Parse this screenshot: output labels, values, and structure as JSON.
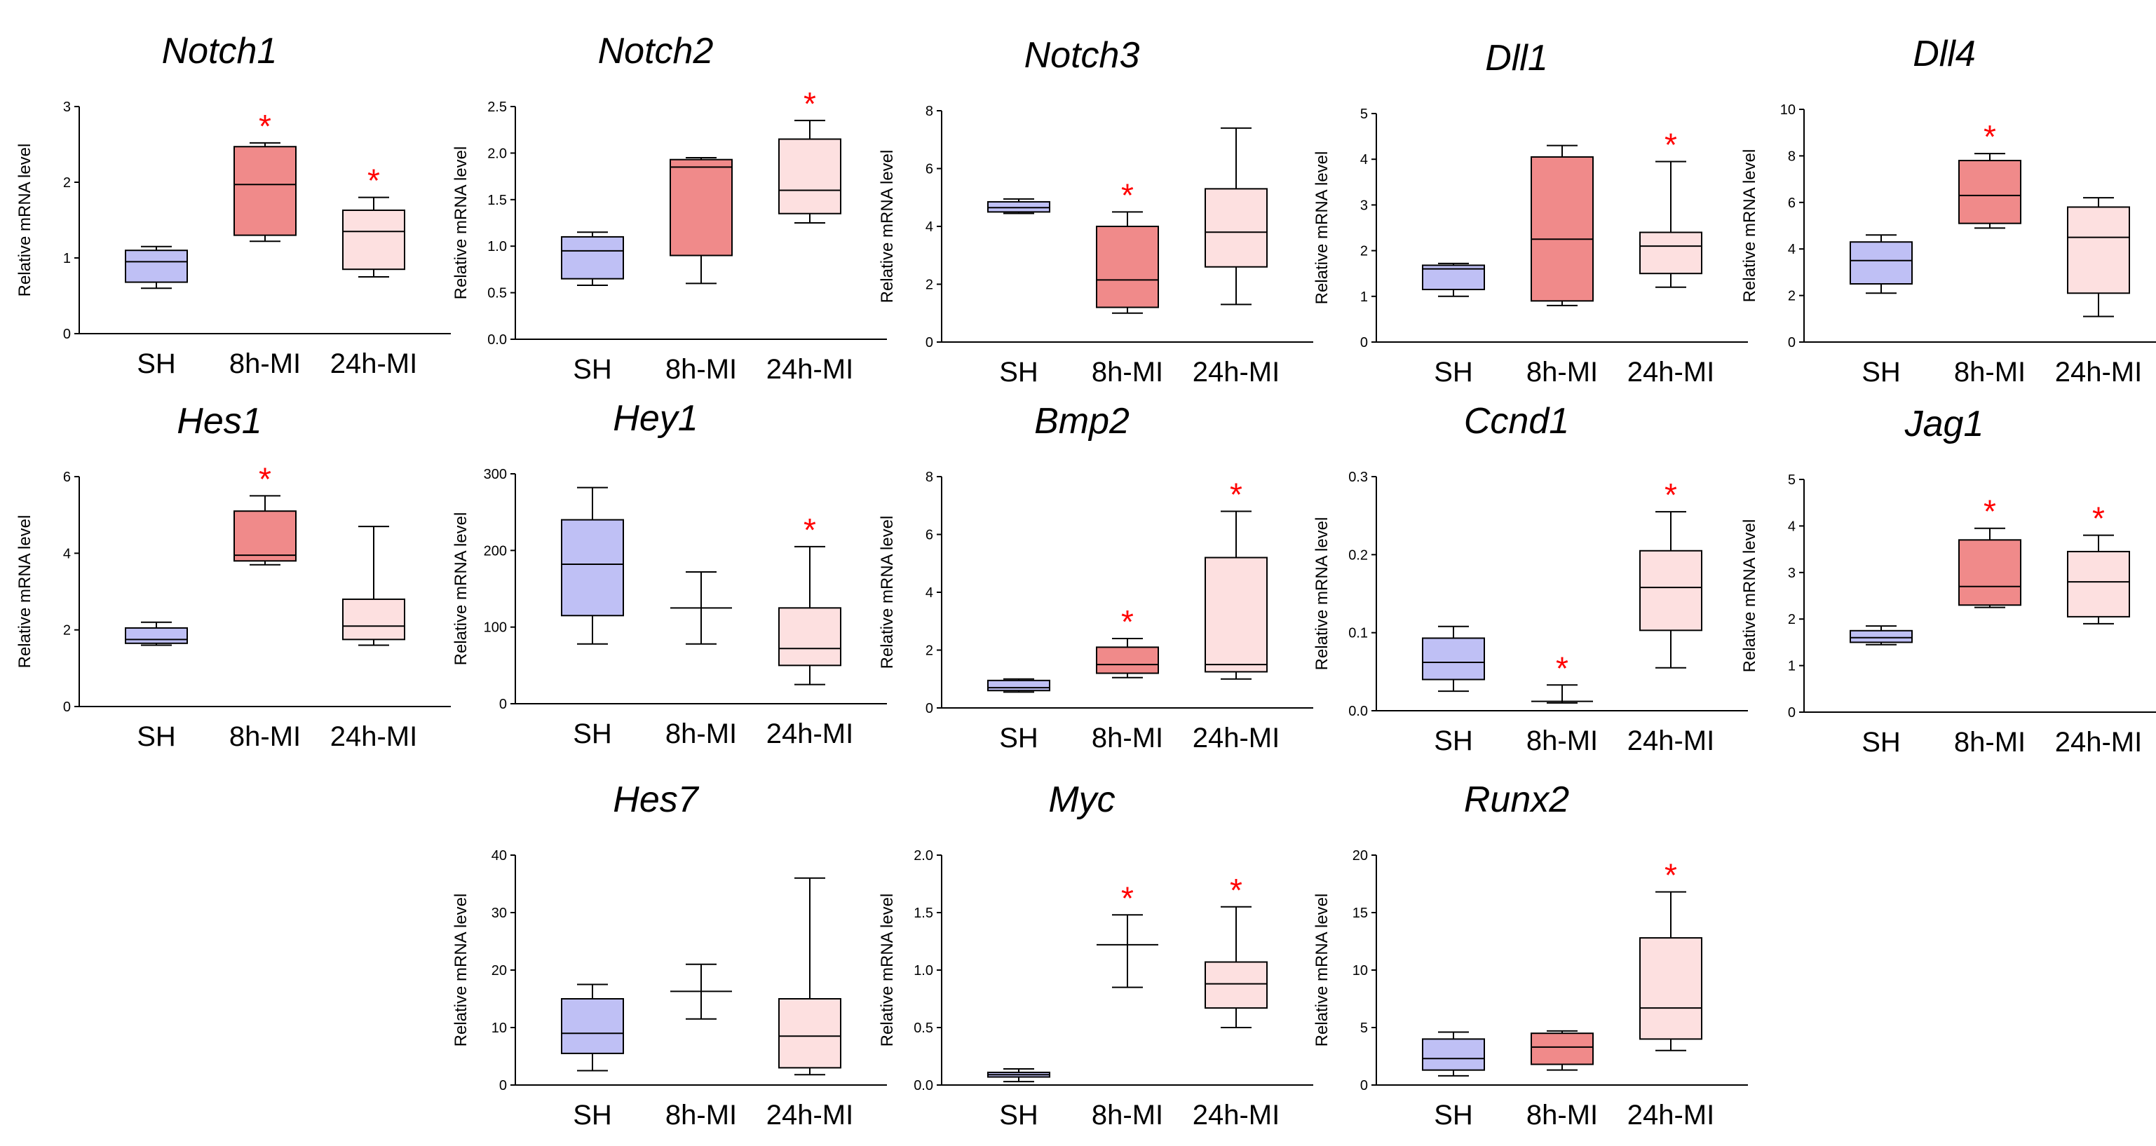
{
  "colors": {
    "SH": "#bfc0f5",
    "8h-MI": "#f08a8a",
    "24h-MI": "#fde0e0",
    "star": "#ff0000"
  },
  "chart_data": [
    {
      "type": "box",
      "title": "Notch1",
      "ylabel": "Relative mRNA level",
      "ylim": [
        0,
        3
      ],
      "yticks": [
        "0",
        "1",
        "2",
        "3"
      ],
      "categories": [
        "SH",
        "8h-MI",
        "24h-MI"
      ],
      "boxes": [
        {
          "min": 0.6,
          "q1": 0.68,
          "median": 0.95,
          "q3": 1.1,
          "max": 1.15
        },
        {
          "min": 1.22,
          "q1": 1.3,
          "median": 1.97,
          "q3": 2.47,
          "max": 2.52
        },
        {
          "min": 0.75,
          "q1": 0.85,
          "median": 1.35,
          "q3": 1.63,
          "max": 1.8
        }
      ],
      "significance": [
        "",
        "*",
        "*"
      ]
    },
    {
      "type": "box",
      "title": "Notch2",
      "ylabel": "Relative mRNA level",
      "ylim": [
        0,
        2.5
      ],
      "yticks": [
        "0.0",
        "0.5",
        "1.0",
        "1.5",
        "2.0",
        "2.5"
      ],
      "categories": [
        "SH",
        "8h-MI",
        "24h-MI"
      ],
      "boxes": [
        {
          "min": 0.58,
          "q1": 0.65,
          "median": 0.95,
          "q3": 1.1,
          "max": 1.15
        },
        {
          "min": 0.6,
          "q1": 0.9,
          "median": 1.85,
          "q3": 1.93,
          "max": 1.95
        },
        {
          "min": 1.25,
          "q1": 1.35,
          "median": 1.6,
          "q3": 2.15,
          "max": 2.35
        }
      ],
      "significance": [
        "",
        "",
        "*"
      ]
    },
    {
      "type": "box",
      "title": "Notch3",
      "ylabel": "Relative mRNA level",
      "ylim": [
        0,
        8
      ],
      "yticks": [
        "0",
        "2",
        "4",
        "6",
        "8"
      ],
      "categories": [
        "SH",
        "8h-MI",
        "24h-MI"
      ],
      "boxes": [
        {
          "min": 4.45,
          "q1": 4.5,
          "median": 4.65,
          "q3": 4.85,
          "max": 4.95
        },
        {
          "min": 1.0,
          "q1": 1.2,
          "median": 2.15,
          "q3": 4.0,
          "max": 4.5
        },
        {
          "min": 1.3,
          "q1": 2.6,
          "median": 3.8,
          "q3": 5.3,
          "max": 7.4
        }
      ],
      "significance": [
        "",
        "*",
        ""
      ]
    },
    {
      "type": "box",
      "title": "Dll1",
      "ylabel": "Relative mRNA level",
      "ylim": [
        0,
        5
      ],
      "yticks": [
        "0",
        "1",
        "2",
        "3",
        "4",
        "5"
      ],
      "categories": [
        "SH",
        "8h-MI",
        "24h-MI"
      ],
      "boxes": [
        {
          "min": 1.0,
          "q1": 1.15,
          "median": 1.6,
          "q3": 1.68,
          "max": 1.72
        },
        {
          "min": 0.8,
          "q1": 0.9,
          "median": 2.25,
          "q3": 4.05,
          "max": 4.3
        },
        {
          "min": 1.2,
          "q1": 1.5,
          "median": 2.1,
          "q3": 2.4,
          "max": 3.95
        }
      ],
      "significance": [
        "",
        "",
        "*"
      ]
    },
    {
      "type": "box",
      "title": "Dll4",
      "ylabel": "Relative mRNA level",
      "ylim": [
        0,
        10
      ],
      "yticks": [
        "0",
        "2",
        "4",
        "6",
        "8",
        "10"
      ],
      "categories": [
        "SH",
        "8h-MI",
        "24h-MI"
      ],
      "boxes": [
        {
          "min": 2.1,
          "q1": 2.5,
          "median": 3.5,
          "q3": 4.3,
          "max": 4.6
        },
        {
          "min": 4.9,
          "q1": 5.1,
          "median": 6.3,
          "q3": 7.8,
          "max": 8.1
        },
        {
          "min": 1.1,
          "q1": 2.1,
          "median": 4.5,
          "q3": 5.8,
          "max": 6.2
        }
      ],
      "significance": [
        "",
        "*",
        ""
      ]
    },
    {
      "type": "box",
      "title": "Hes1",
      "ylabel": "Relative mRNA level",
      "ylim": [
        0,
        6
      ],
      "yticks": [
        "0",
        "2",
        "4",
        "6"
      ],
      "categories": [
        "SH",
        "8h-MI",
        "24h-MI"
      ],
      "boxes": [
        {
          "min": 1.6,
          "q1": 1.65,
          "median": 1.75,
          "q3": 2.05,
          "max": 2.2
        },
        {
          "min": 3.7,
          "q1": 3.8,
          "median": 3.95,
          "q3": 5.1,
          "max": 5.5
        },
        {
          "min": 1.6,
          "q1": 1.75,
          "median": 2.1,
          "q3": 2.8,
          "max": 4.7
        }
      ],
      "significance": [
        "",
        "*",
        ""
      ]
    },
    {
      "type": "box",
      "title": "Hey1",
      "ylabel": "Relative mRNA level",
      "ylim": [
        0,
        300
      ],
      "yticks": [
        "0",
        "100",
        "200",
        "300"
      ],
      "categories": [
        "SH",
        "8h-MI",
        "24h-MI"
      ],
      "boxes": [
        {
          "min": 78,
          "q1": 115,
          "median": 182,
          "q3": 240,
          "max": 282
        },
        {
          "min": 78,
          "median": 125,
          "max": 172
        },
        {
          "min": 25,
          "q1": 50,
          "median": 72,
          "q3": 125,
          "max": 205
        }
      ],
      "significance": [
        "",
        "",
        "*"
      ]
    },
    {
      "type": "box",
      "title": "Bmp2",
      "ylabel": "Relative mRNA level",
      "ylim": [
        0,
        8
      ],
      "yticks": [
        "0",
        "2",
        "4",
        "6",
        "8"
      ],
      "categories": [
        "SH",
        "8h-MI",
        "24h-MI"
      ],
      "boxes": [
        {
          "min": 0.55,
          "q1": 0.6,
          "median": 0.7,
          "q3": 0.95,
          "max": 1.0
        },
        {
          "min": 1.05,
          "q1": 1.2,
          "median": 1.5,
          "q3": 2.1,
          "max": 2.4
        },
        {
          "min": 1.0,
          "q1": 1.25,
          "median": 1.5,
          "q3": 5.2,
          "max": 6.8
        }
      ],
      "significance": [
        "",
        "*",
        "*"
      ]
    },
    {
      "type": "box",
      "title": "Ccnd1",
      "ylabel": "Relative mRNA level",
      "ylim": [
        0,
        0.3
      ],
      "yticks": [
        "0.0",
        "0.1",
        "0.2",
        "0.3"
      ],
      "categories": [
        "SH",
        "8h-MI",
        "24h-MI"
      ],
      "boxes": [
        {
          "min": 0.025,
          "q1": 0.04,
          "median": 0.062,
          "q3": 0.093,
          "max": 0.108
        },
        {
          "min": 0.01,
          "median": 0.012,
          "max": 0.033
        },
        {
          "min": 0.055,
          "q1": 0.103,
          "median": 0.158,
          "q3": 0.205,
          "max": 0.255
        }
      ],
      "significance": [
        "",
        "*",
        "*"
      ]
    },
    {
      "type": "box",
      "title": "Jag1",
      "ylabel": "Relative mRNA level",
      "ylim": [
        0,
        5
      ],
      "yticks": [
        "0",
        "1",
        "2",
        "3",
        "4",
        "5"
      ],
      "categories": [
        "SH",
        "8h-MI",
        "24h-MI"
      ],
      "boxes": [
        {
          "min": 1.45,
          "q1": 1.5,
          "median": 1.6,
          "q3": 1.75,
          "max": 1.85
        },
        {
          "min": 2.25,
          "q1": 2.3,
          "median": 2.7,
          "q3": 3.7,
          "max": 3.95
        },
        {
          "min": 1.9,
          "q1": 2.05,
          "median": 2.8,
          "q3": 3.45,
          "max": 3.8
        }
      ],
      "significance": [
        "",
        "*",
        "*"
      ]
    },
    {
      "type": "box",
      "title": "Hes7",
      "ylabel": "Relative mRNA level",
      "ylim": [
        0,
        40
      ],
      "yticks": [
        "0",
        "10",
        "20",
        "30",
        "40"
      ],
      "categories": [
        "SH",
        "8h-MI",
        "24h-MI"
      ],
      "boxes": [
        {
          "min": 2.5,
          "q1": 5.5,
          "median": 9.0,
          "q3": 15.0,
          "max": 17.5
        },
        {
          "min": 11.5,
          "median": 16.3,
          "max": 21.0
        },
        {
          "min": 1.8,
          "q1": 3.0,
          "median": 8.5,
          "q3": 15.0,
          "max": 36.0
        }
      ],
      "significance": [
        "",
        "",
        ""
      ]
    },
    {
      "type": "box",
      "title": "Myc",
      "ylabel": "Relative mRNA level",
      "ylim": [
        0,
        2
      ],
      "yticks": [
        "0.0",
        "0.5",
        "1.0",
        "1.5",
        "2.0"
      ],
      "categories": [
        "SH",
        "8h-MI",
        "24h-MI"
      ],
      "boxes": [
        {
          "min": 0.03,
          "q1": 0.07,
          "median": 0.09,
          "q3": 0.11,
          "max": 0.14
        },
        {
          "min": 0.85,
          "median": 1.22,
          "max": 1.48
        },
        {
          "min": 0.5,
          "q1": 0.67,
          "median": 0.88,
          "q3": 1.07,
          "max": 1.55
        }
      ],
      "significance": [
        "",
        "*",
        "*"
      ]
    },
    {
      "type": "box",
      "title": "Runx2",
      "ylabel": "Relative mRNA level",
      "ylim": [
        0,
        20
      ],
      "yticks": [
        "0",
        "5",
        "10",
        "15",
        "20"
      ],
      "categories": [
        "SH",
        "8h-MI",
        "24h-MI"
      ],
      "boxes": [
        {
          "min": 0.8,
          "q1": 1.3,
          "median": 2.3,
          "q3": 4.0,
          "max": 4.6
        },
        {
          "min": 1.3,
          "q1": 1.8,
          "median": 3.3,
          "q3": 4.5,
          "max": 4.7
        },
        {
          "min": 3.0,
          "q1": 4.0,
          "median": 6.7,
          "q3": 12.8,
          "max": 16.8
        }
      ],
      "significance": [
        "",
        "",
        "*"
      ]
    }
  ]
}
